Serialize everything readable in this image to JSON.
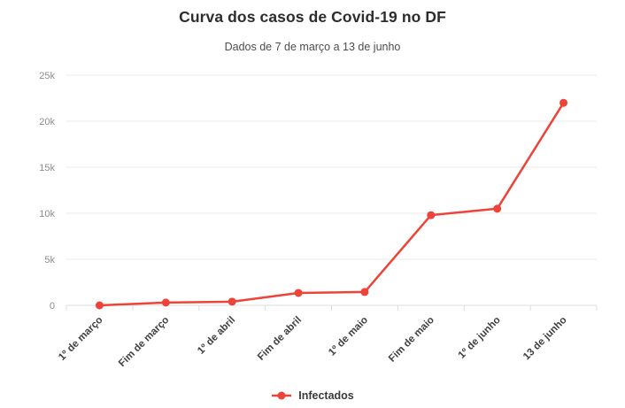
{
  "chart_data": {
    "type": "line",
    "title": "Curva dos casos de Covid-19 no DF",
    "subtitle": "Dados de 7 de março a 13 de junho",
    "categories": [
      "1º de março",
      "Fim de março",
      "1º de abril",
      "Fim de abril",
      "1º de maio",
      "Fim de maio",
      "1º de junho",
      "13 de junho"
    ],
    "series": [
      {
        "name": "Infectados",
        "color": "#ee4338",
        "values": [
          0,
          300,
          400,
          1350,
          1450,
          9800,
          10500,
          22000
        ]
      }
    ],
    "xlabel": "",
    "ylabel": "",
    "ylim": [
      0,
      25000
    ],
    "yticks": [
      0,
      5000,
      10000,
      15000,
      20000,
      25000
    ],
    "ytick_labels": [
      "0",
      "5k",
      "10k",
      "15k",
      "20k",
      "25k"
    ],
    "grid": true,
    "legend_position": "bottom"
  },
  "colors": {
    "accent": "#ee4338",
    "gridline": "#e8e8e8",
    "axis": "#dcdcdc",
    "y_tick_text": "#8c8c8c",
    "x_tick_text": "#404040",
    "title_text": "#2d2d2d",
    "subtitle_text": "#4d4d4d"
  }
}
